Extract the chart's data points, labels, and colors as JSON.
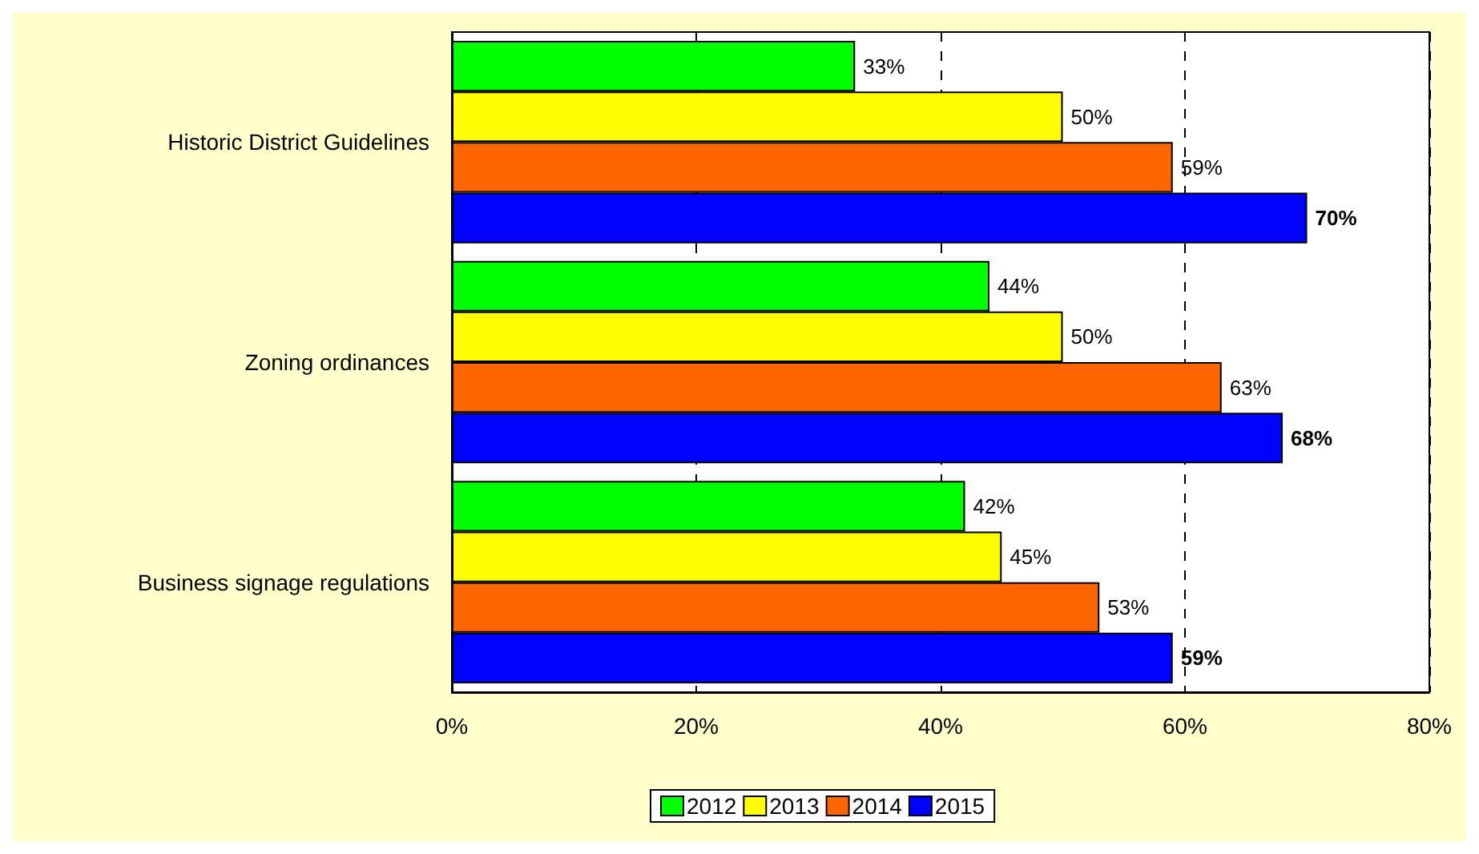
{
  "chart_data": {
    "type": "bar",
    "orientation": "horizontal",
    "categories": [
      "Historic District Guidelines",
      "Zoning ordinances",
      "Business signage regulations"
    ],
    "series": [
      {
        "name": "2012",
        "color": "#00ff00",
        "values": [
          33,
          44,
          42
        ],
        "value_labels": [
          "33%",
          "44%",
          "42%"
        ]
      },
      {
        "name": "2013",
        "color": "#ffff00",
        "values": [
          50,
          50,
          45
        ],
        "value_labels": [
          "50%",
          "50%",
          "45%"
        ]
      },
      {
        "name": "2014",
        "color": "#ff6600",
        "values": [
          59,
          63,
          53
        ],
        "value_labels": [
          "59%",
          "63%",
          "53%"
        ]
      },
      {
        "name": "2015",
        "color": "#0000ff",
        "values": [
          70,
          68,
          59
        ],
        "value_labels": [
          "70%",
          "68%",
          "59%"
        ]
      }
    ],
    "xlim": [
      0,
      80
    ],
    "xticks": [
      {
        "value": 0,
        "label": "0%"
      },
      {
        "value": 20,
        "label": "20%"
      },
      {
        "value": 40,
        "label": "40%"
      },
      {
        "value": 60,
        "label": "60%"
      },
      {
        "value": 80,
        "label": "80%"
      }
    ],
    "grid": "x",
    "legend": "bottom"
  }
}
